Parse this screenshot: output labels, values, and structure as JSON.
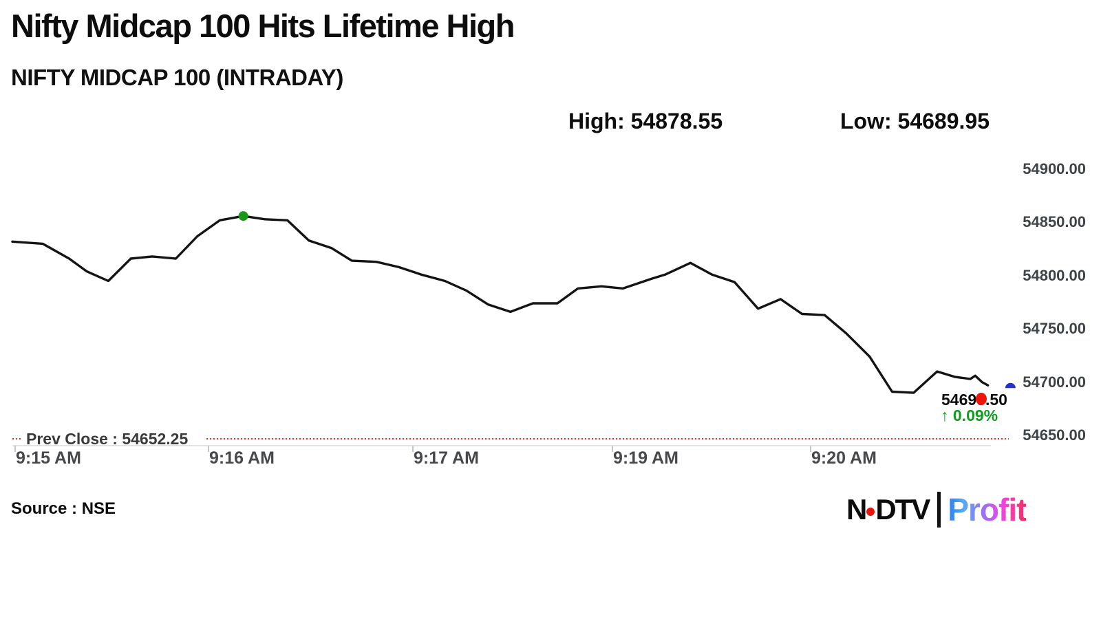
{
  "page": {
    "title": "Nifty Midcap 100 Hits Lifetime High",
    "subtitle": "NIFTY MIDCAP 100 (INTRADAY)",
    "high_label": "High: 54878.55",
    "low_label": "Low: 54689.95",
    "source": "Source : NSE"
  },
  "price_tag": {
    "last_price": "54699.50",
    "change": "↑ 0.09%",
    "dot_color": "#ec1507"
  },
  "prev_close": {
    "label": "Prev Close : 54652.25",
    "value": 54652.25,
    "line_color": "#d23b2e"
  },
  "logo": {
    "ndtv_left": "N",
    "ndtv_right": "DTV",
    "profit": "Profit"
  },
  "chart_data": {
    "type": "line",
    "title": "NIFTY MIDCAP 100 (INTRADAY)",
    "high": 54878.55,
    "low": 54689.95,
    "prev_close": 54652.25,
    "last_price": 54699.5,
    "change_pct": "+0.09%",
    "grid": false,
    "line_color": "#141414",
    "y_axis": {
      "side": "right",
      "min": 54650,
      "max": 54900,
      "ticks": [
        {
          "label": "54900.00",
          "value": 54900
        },
        {
          "label": "54850.00",
          "value": 54850
        },
        {
          "label": "54800.00",
          "value": 54800
        },
        {
          "label": "54750.00",
          "value": 54750
        },
        {
          "label": "54700.00",
          "value": 54700
        },
        {
          "label": "54650.00",
          "value": 54650
        }
      ]
    },
    "x_axis": {
      "ticks": [
        {
          "label": "9:15 AM",
          "pos": 0.002
        },
        {
          "label": "9:16 AM",
          "pos": 0.1997
        },
        {
          "label": "9:17 AM",
          "pos": 0.4086
        },
        {
          "label": "9:19 AM",
          "pos": 0.6125
        },
        {
          "label": "9:20 AM",
          "pos": 0.815
        }
      ]
    },
    "markers": {
      "high_dot": {
        "pos": 0.236,
        "value": 54856,
        "color": "#179917"
      },
      "last_dot": {
        "pos": 1.02,
        "value": 54697,
        "color": "#2531cd"
      }
    },
    "series": [
      {
        "name": "NIFTY MIDCAP 100",
        "points": [
          [
            0.0,
            54832
          ],
          [
            0.031,
            54830
          ],
          [
            0.058,
            54816
          ],
          [
            0.076,
            54804
          ],
          [
            0.098,
            54795
          ],
          [
            0.121,
            54816
          ],
          [
            0.143,
            54818
          ],
          [
            0.167,
            54816
          ],
          [
            0.189,
            54837
          ],
          [
            0.212,
            54852
          ],
          [
            0.236,
            54856
          ],
          [
            0.258,
            54853
          ],
          [
            0.281,
            54852
          ],
          [
            0.303,
            54833
          ],
          [
            0.326,
            54826
          ],
          [
            0.347,
            54814
          ],
          [
            0.372,
            54813
          ],
          [
            0.395,
            54808
          ],
          [
            0.418,
            54801
          ],
          [
            0.442,
            54795
          ],
          [
            0.464,
            54786
          ],
          [
            0.486,
            54773
          ],
          [
            0.509,
            54766
          ],
          [
            0.532,
            54774
          ],
          [
            0.557,
            54774
          ],
          [
            0.578,
            54788
          ],
          [
            0.602,
            54790
          ],
          [
            0.624,
            54788
          ],
          [
            0.653,
            54797
          ],
          [
            0.667,
            54801
          ],
          [
            0.693,
            54812
          ],
          [
            0.715,
            54801
          ],
          [
            0.738,
            54794
          ],
          [
            0.762,
            54769
          ],
          [
            0.785,
            54778
          ],
          [
            0.807,
            54764
          ],
          [
            0.83,
            54763
          ],
          [
            0.852,
            54746
          ],
          [
            0.876,
            54724
          ],
          [
            0.899,
            54691
          ],
          [
            0.921,
            54690
          ],
          [
            0.945,
            54710
          ],
          [
            0.963,
            54705
          ],
          [
            0.979,
            54703
          ],
          [
            0.984,
            54706
          ],
          [
            0.991,
            54700
          ],
          [
            0.997,
            54697
          ]
        ]
      }
    ]
  }
}
